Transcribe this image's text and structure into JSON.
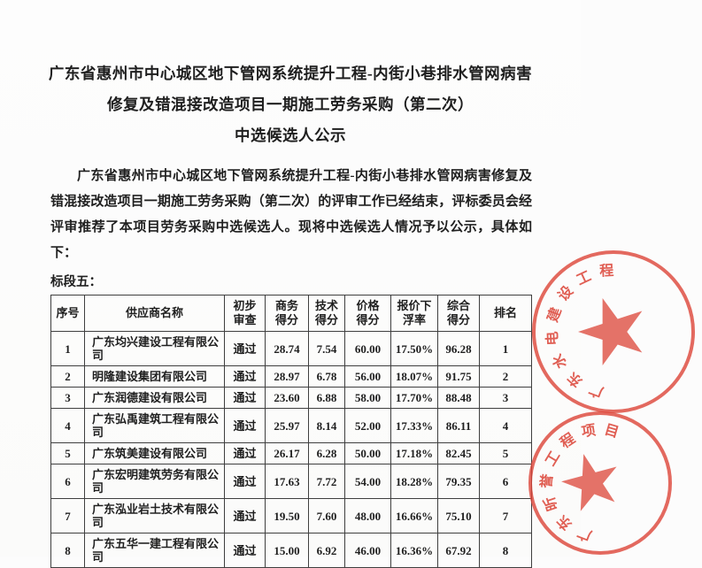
{
  "document": {
    "title_lines": [
      "广东省惠州市中心城区地下管网系统提升工程-内街小巷排水管网病害",
      "修复及错混接改造项目一期施工劳务采购（第二次）",
      "中选候选人公示"
    ],
    "paragraph": "广东省惠州市中心城区地下管网系统提升工程-内街小巷排水管网病害修复及错混接改造项目一期施工劳务采购（第二次）的评审工作已经结束，评标委员会经评审推荐了本项目劳务采购中选候选人。现将中选候选人情况予以公示，具体如下：",
    "section_label": "标段五："
  },
  "table": {
    "headers": [
      "序号",
      "供应商名称",
      "初步\n审查",
      "商务\n得分",
      "技术\n得分",
      "价格\n得分",
      "报价下\n浮率",
      "综合\n得分",
      "排名"
    ],
    "rows": [
      [
        "1",
        "广东均兴建设工程有限公司",
        "通过",
        "28.74",
        "7.54",
        "60.00",
        "17.50%",
        "96.28",
        "1"
      ],
      [
        "2",
        "明隆建设集团有限公司",
        "通过",
        "28.97",
        "6.78",
        "56.00",
        "18.07%",
        "91.75",
        "2"
      ],
      [
        "3",
        "广东润德建设有限公司",
        "通过",
        "23.60",
        "6.88",
        "58.00",
        "17.70%",
        "88.48",
        "3"
      ],
      [
        "4",
        "广东弘禹建筑工程有限公司",
        "通过",
        "25.97",
        "8.14",
        "52.00",
        "17.33%",
        "86.11",
        "4"
      ],
      [
        "5",
        "广东筑美建设有限公司",
        "通过",
        "26.17",
        "6.28",
        "50.00",
        "17.18%",
        "82.45",
        "5"
      ],
      [
        "6",
        "广东宏明建筑劳务有限公司",
        "通过",
        "17.63",
        "7.72",
        "54.00",
        "18.28%",
        "79.35",
        "6"
      ],
      [
        "7",
        "广东泓业岩土技术有限公司",
        "通过",
        "19.50",
        "7.60",
        "48.00",
        "16.66%",
        "75.10",
        "7"
      ],
      [
        "8",
        "广东五华一建工程有限公司",
        "通过",
        "15.00",
        "6.92",
        "46.00",
        "16.36%",
        "67.92",
        "8"
      ]
    ]
  },
  "stamps": {
    "upper": {
      "ring_text": "广东水电建设工程"
    },
    "lower": {
      "ring_text": "广东昕誉工程项目"
    }
  },
  "colors": {
    "stamp_red": "#dc4437",
    "table_border": "#3f3f3f",
    "text": "#1f1f1f",
    "background": "#fcfcfc"
  }
}
